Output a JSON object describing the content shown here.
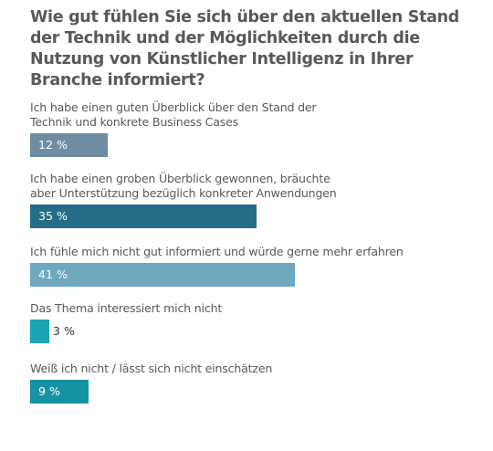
{
  "chart_data": {
    "type": "bar",
    "orientation": "horizontal",
    "title": "Wie gut fühlen Sie sich über den aktuellen Stand der Technik und der Möglichkeiten durch die Nutzung von Künstlicher Intelligenz in Ihrer Branche informiert?",
    "unit": "%",
    "xlim": [
      0,
      100
    ],
    "grid": false,
    "legend": "none",
    "categories": [
      "Ich habe einen guten Überblick über den Stand der Technik und konkrete Business Cases",
      "Ich habe einen groben Überblick gewonnen, bräuchte aber Unterstützung bezüglich konkreter Anwendungen",
      "Ich fühle mich nicht gut informiert und würde gerne mehr erfahren",
      "Das Thema interessiert mich nicht",
      "Weiß ich nicht / lässt sich nicht einschätzen"
    ],
    "values": [
      12,
      35,
      41,
      3,
      9
    ],
    "value_labels": [
      "12 %",
      "35 %",
      "41 %",
      "3 %",
      "9 %"
    ],
    "colors": [
      "#6f8ca3",
      "#256d86",
      "#6fa8c1",
      "#1aa3b4",
      "#1593a4"
    ]
  }
}
